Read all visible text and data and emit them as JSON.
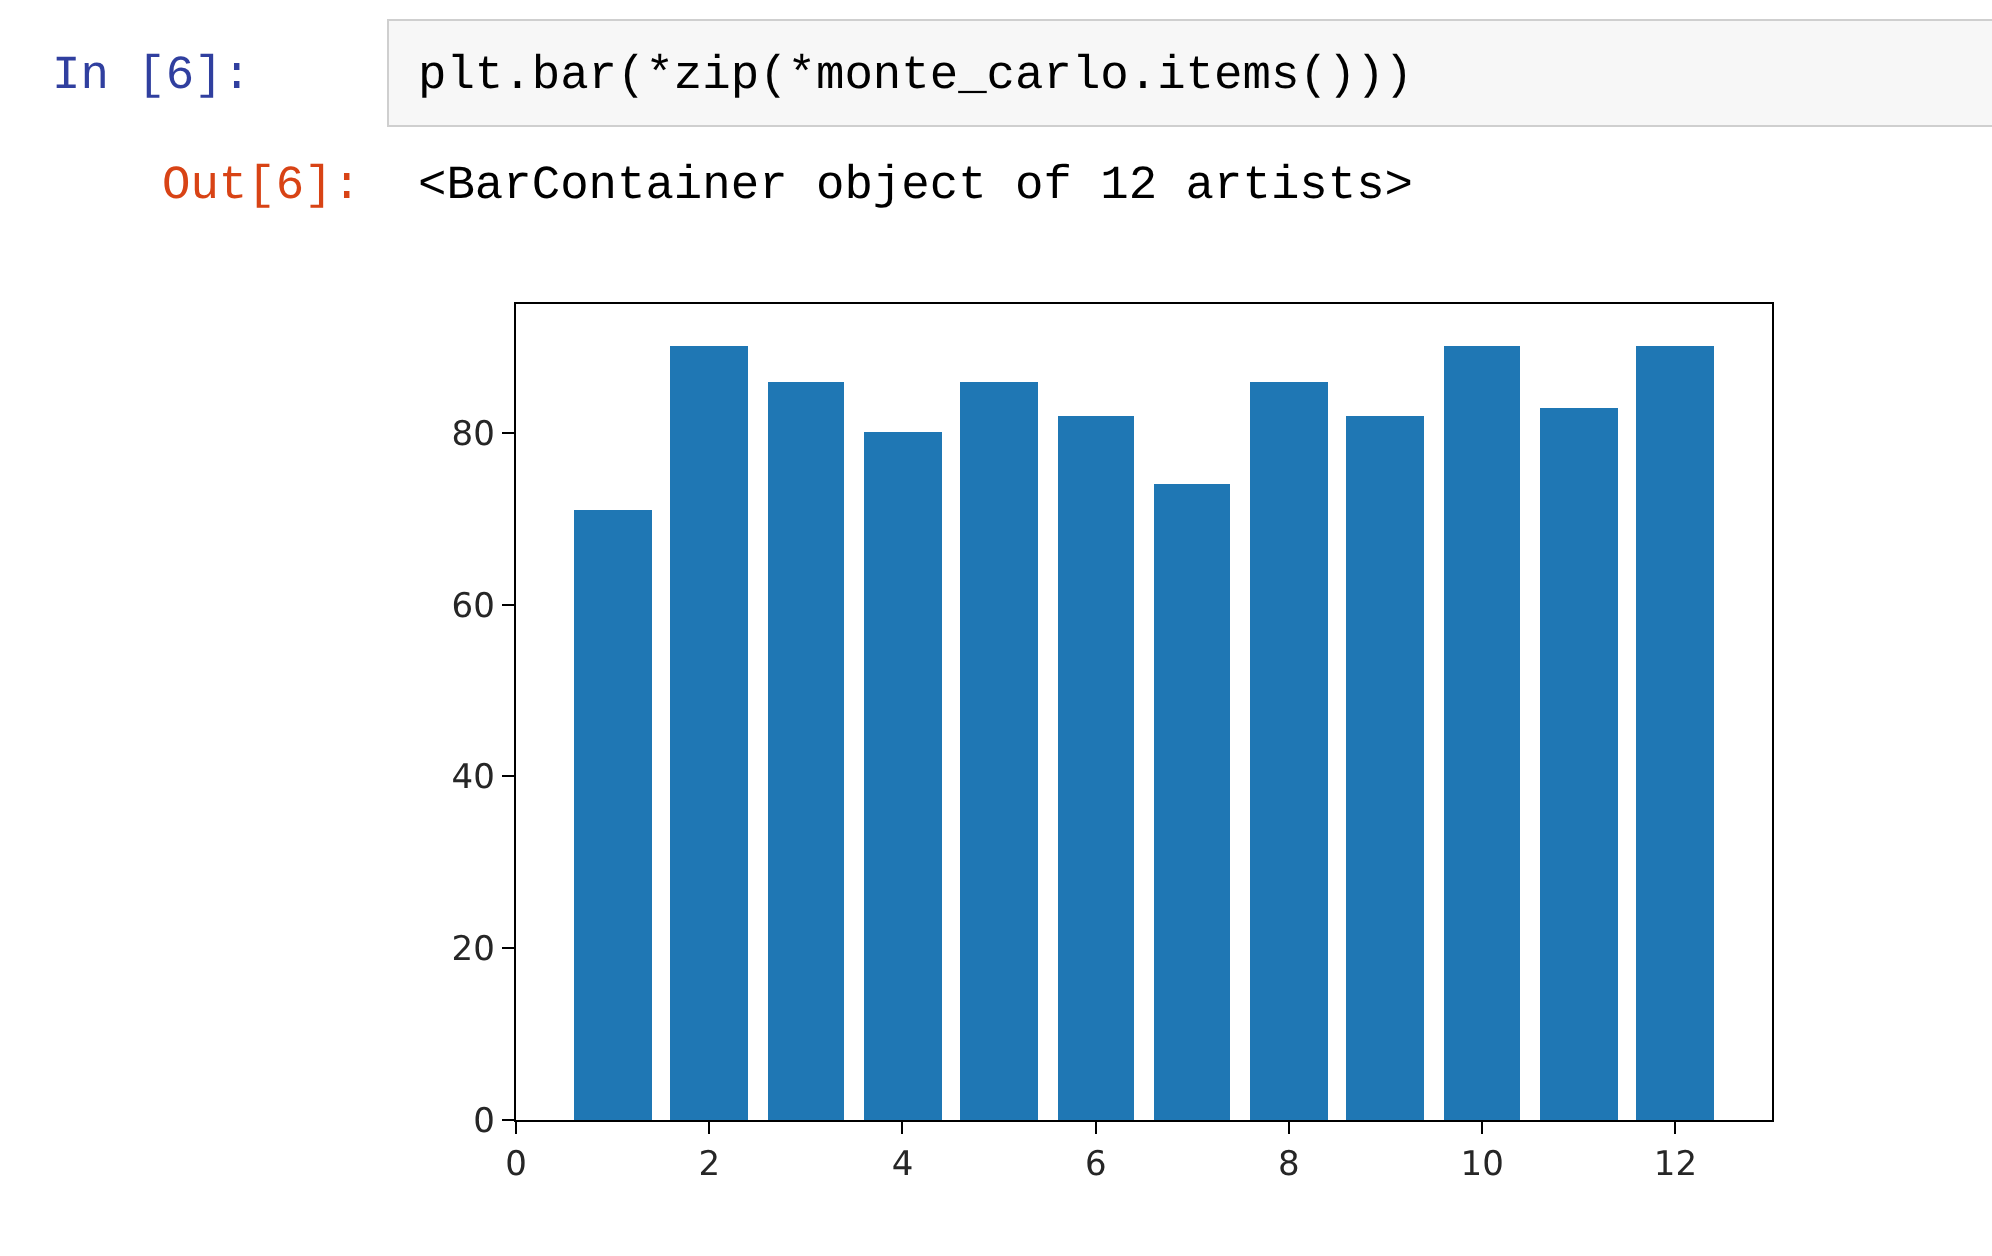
{
  "chart_data": {
    "type": "bar",
    "x": [
      1,
      2,
      3,
      4,
      5,
      6,
      7,
      8,
      9,
      10,
      11,
      12
    ],
    "values": [
      71,
      90,
      86,
      80,
      86,
      82,
      74,
      86,
      82,
      90,
      83,
      90
    ],
    "color": "#1f77b4",
    "xlim": [
      0,
      13
    ],
    "ylim": [
      0,
      95
    ],
    "xticks": [
      0,
      2,
      4,
      6,
      8,
      10,
      12
    ],
    "yticks": [
      0,
      20,
      40,
      60,
      80
    ],
    "grid": false,
    "annotations": [
      "In [6]:",
      "plt.bar(*zip(*monte_carlo.items()))",
      "Out[6]:",
      "<BarContainer object of 12 artists>"
    ]
  }
}
